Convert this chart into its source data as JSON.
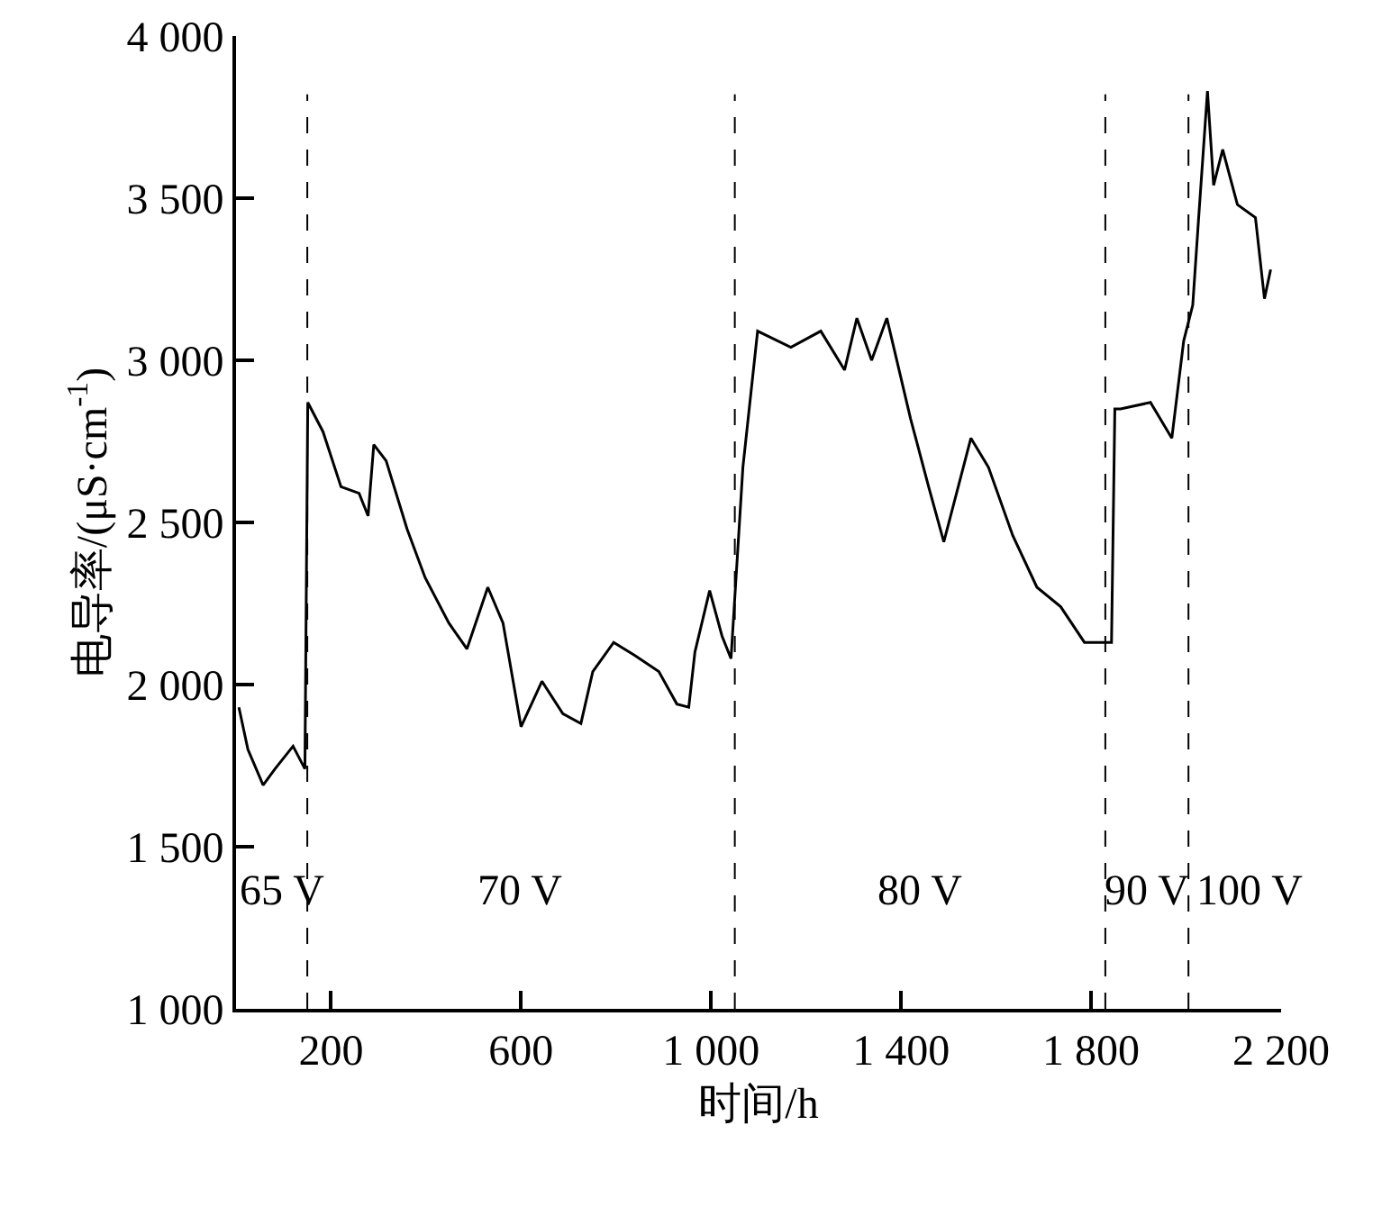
{
  "chart_data": {
    "type": "line",
    "xlabel": "时间/h",
    "ylabel": "电导率/(μS·cm$^{-1}$)",
    "x": [
      6,
      25,
      57,
      82,
      120,
      145,
      151,
      183,
      221,
      259,
      278,
      290,
      316,
      360,
      398,
      448,
      486,
      530,
      562,
      600,
      644,
      688,
      726,
      751,
      795,
      839,
      890,
      928,
      953,
      966,
      997,
      1023,
      1042,
      1067,
      1098,
      1168,
      1231,
      1281,
      1307,
      1338,
      1370,
      1420,
      1458,
      1490,
      1547,
      1584,
      1635,
      1686,
      1736,
      1786,
      1843,
      1850,
      1862,
      1925,
      1970,
      1995,
      2014,
      2026,
      2045,
      2058,
      2077,
      2108,
      2146,
      2165,
      2178
    ],
    "series": [
      {
        "color": "#000000",
        "values": [
          1930,
          1800,
          1690,
          1740,
          1810,
          1740,
          2870,
          2780,
          2610,
          2590,
          2520,
          2740,
          2690,
          2480,
          2330,
          2190,
          2110,
          2300,
          2190,
          1870,
          2010,
          1910,
          1880,
          2040,
          2130,
          2090,
          2040,
          1940,
          1930,
          2100,
          2290,
          2150,
          2080,
          2670,
          3090,
          3040,
          3090,
          2970,
          3130,
          3000,
          3130,
          2820,
          2610,
          2440,
          2760,
          2670,
          2460,
          2300,
          2240,
          2130,
          2130,
          2850,
          2850,
          2870,
          2760,
          3060,
          3170,
          3430,
          3830,
          3540,
          3650,
          3480,
          3440,
          3190,
          3280
        ]
      }
    ],
    "xlim": [
      0,
      2200
    ],
    "xticks": [
      200,
      600,
      {
        "value": 1000,
        "label": "1 000"
      },
      {
        "value": 1400,
        "label": "1 400"
      },
      {
        "value": 1800,
        "label": "1 800"
      },
      {
        "value": 2200,
        "label": "2 200"
      }
    ],
    "ylim": [
      1000,
      4000
    ],
    "yticks": [
      {
        "value": 1000,
        "label": "1 000"
      },
      {
        "value": 1500,
        "label": "1 500"
      },
      {
        "value": 2000,
        "label": "2 000"
      },
      {
        "value": 2500,
        "label": "2 500"
      },
      {
        "value": 3000,
        "label": "3 000"
      },
      {
        "value": 3500,
        "label": "3 500"
      },
      {
        "value": 4000,
        "label": "4 000"
      }
    ],
    "ref_lines": [
      {
        "axis": "x",
        "value": 150,
        "color": "#000000",
        "line_style": "dashed"
      },
      {
        "axis": "x",
        "value": 1050,
        "color": "#000000",
        "line_style": "dashed"
      },
      {
        "axis": "x",
        "value": 1830,
        "color": "#000000",
        "line_style": "dashed"
      },
      {
        "axis": "x",
        "value": 2005,
        "color": "#000000",
        "line_style": "dashed"
      }
    ],
    "annotations": [
      "65 V",
      "70 V",
      "80 V",
      "90 V",
      "100 V"
    ],
    "grid": false,
    "marker": "none",
    "line_style": "solid"
  }
}
